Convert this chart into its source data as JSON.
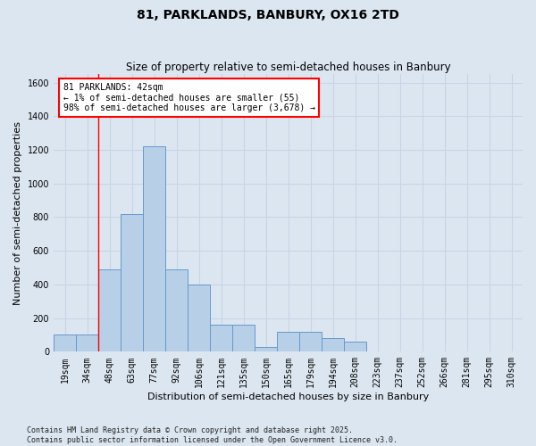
{
  "title": "81, PARKLANDS, BANBURY, OX16 2TD",
  "subtitle": "Size of property relative to semi-detached houses in Banbury",
  "xlabel": "Distribution of semi-detached houses by size in Banbury",
  "ylabel": "Number of semi-detached properties",
  "categories": [
    "19sqm",
    "34sqm",
    "48sqm",
    "63sqm",
    "77sqm",
    "92sqm",
    "106sqm",
    "121sqm",
    "135sqm",
    "150sqm",
    "165sqm",
    "179sqm",
    "194sqm",
    "208sqm",
    "223sqm",
    "237sqm",
    "252sqm",
    "266sqm",
    "281sqm",
    "295sqm",
    "310sqm"
  ],
  "bar_values": [
    100,
    100,
    490,
    820,
    1220,
    490,
    400,
    160,
    160,
    30,
    120,
    120,
    80,
    60,
    0,
    0,
    0,
    0,
    0,
    0,
    0
  ],
  "bar_color": "#b8cfe8",
  "bar_edge_color": "#6699cc",
  "grid_color": "#c8d4e8",
  "background_color": "#dce6f0",
  "property_label": "81 PARKLANDS: 42sqm",
  "annotation_line1": "← 1% of semi-detached houses are smaller (55)",
  "annotation_line2": "98% of semi-detached houses are larger (3,678) →",
  "annotation_box_color": "white",
  "annotation_box_edge_color": "red",
  "vline_color": "red",
  "vline_x_index": 1.5,
  "ylim": [
    0,
    1650
  ],
  "yticks": [
    0,
    200,
    400,
    600,
    800,
    1000,
    1200,
    1400,
    1600
  ],
  "footnote_line1": "Contains HM Land Registry data © Crown copyright and database right 2025.",
  "footnote_line2": "Contains public sector information licensed under the Open Government Licence v3.0.",
  "title_fontsize": 10,
  "subtitle_fontsize": 8.5,
  "tick_fontsize": 7,
  "label_fontsize": 8,
  "annotation_fontsize": 7,
  "footnote_fontsize": 6
}
